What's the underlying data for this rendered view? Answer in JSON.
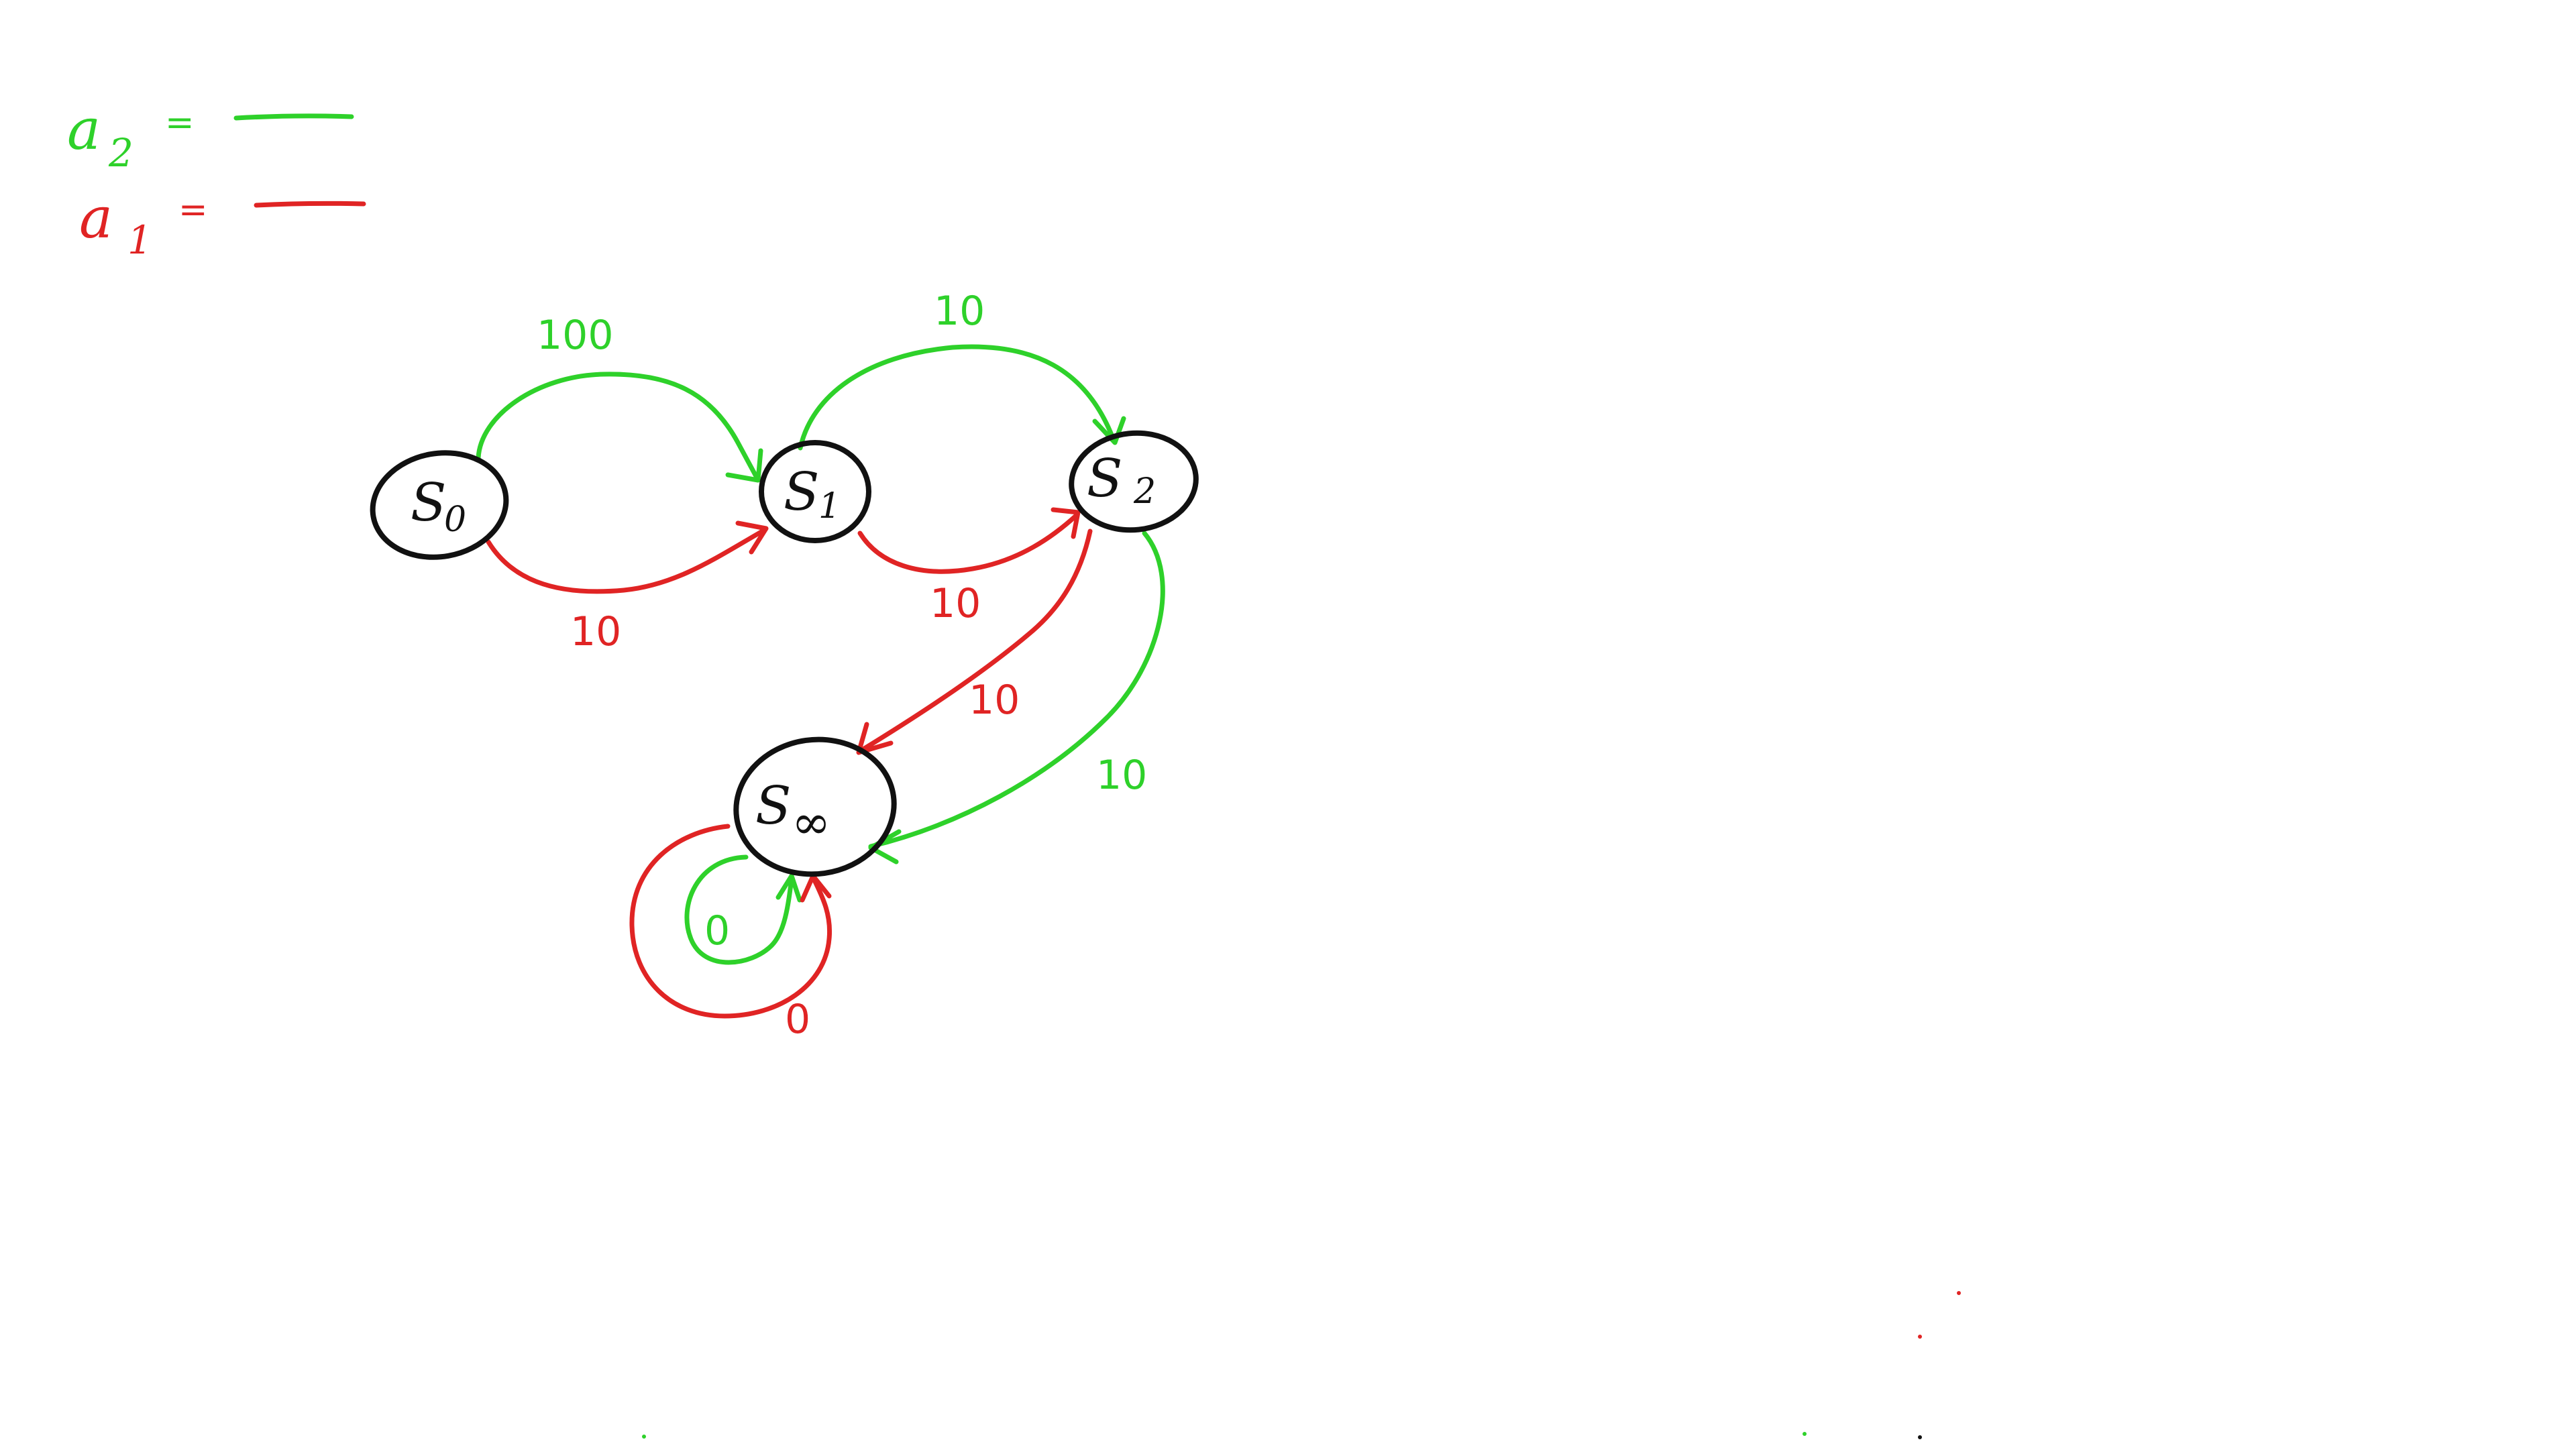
{
  "colors": {
    "green": "#2ed12a",
    "red": "#e02424",
    "ink": "#111111",
    "background": "#ffffff"
  },
  "legend": {
    "items": [
      {
        "letter": "a",
        "subscript": "2",
        "equals": "=",
        "color": "green"
      },
      {
        "letter": "a",
        "subscript": "1",
        "equals": "=",
        "color": "red"
      }
    ]
  },
  "nodes": {
    "s0": {
      "letter": "S",
      "subscript": "0"
    },
    "s1": {
      "letter": "S",
      "subscript": "1"
    },
    "s2": {
      "letter": "S",
      "subscript": "2"
    },
    "sinf": {
      "letter": "S",
      "subscript": "∞"
    }
  },
  "edges": {
    "s0_s1_green": {
      "label": "100",
      "action": "a2"
    },
    "s0_s1_red": {
      "label": "10",
      "action": "a1"
    },
    "s1_s2_green": {
      "label": "10",
      "action": "a2"
    },
    "s1_s2_red": {
      "label": "10",
      "action": "a1"
    },
    "s2_sinf_red": {
      "label": "10",
      "action": "a1"
    },
    "s2_sinf_green": {
      "label": "10",
      "action": "a2"
    },
    "sinf_loop_green": {
      "label": "0",
      "action": "a2"
    },
    "sinf_loop_red": {
      "label": "0",
      "action": "a1"
    }
  }
}
